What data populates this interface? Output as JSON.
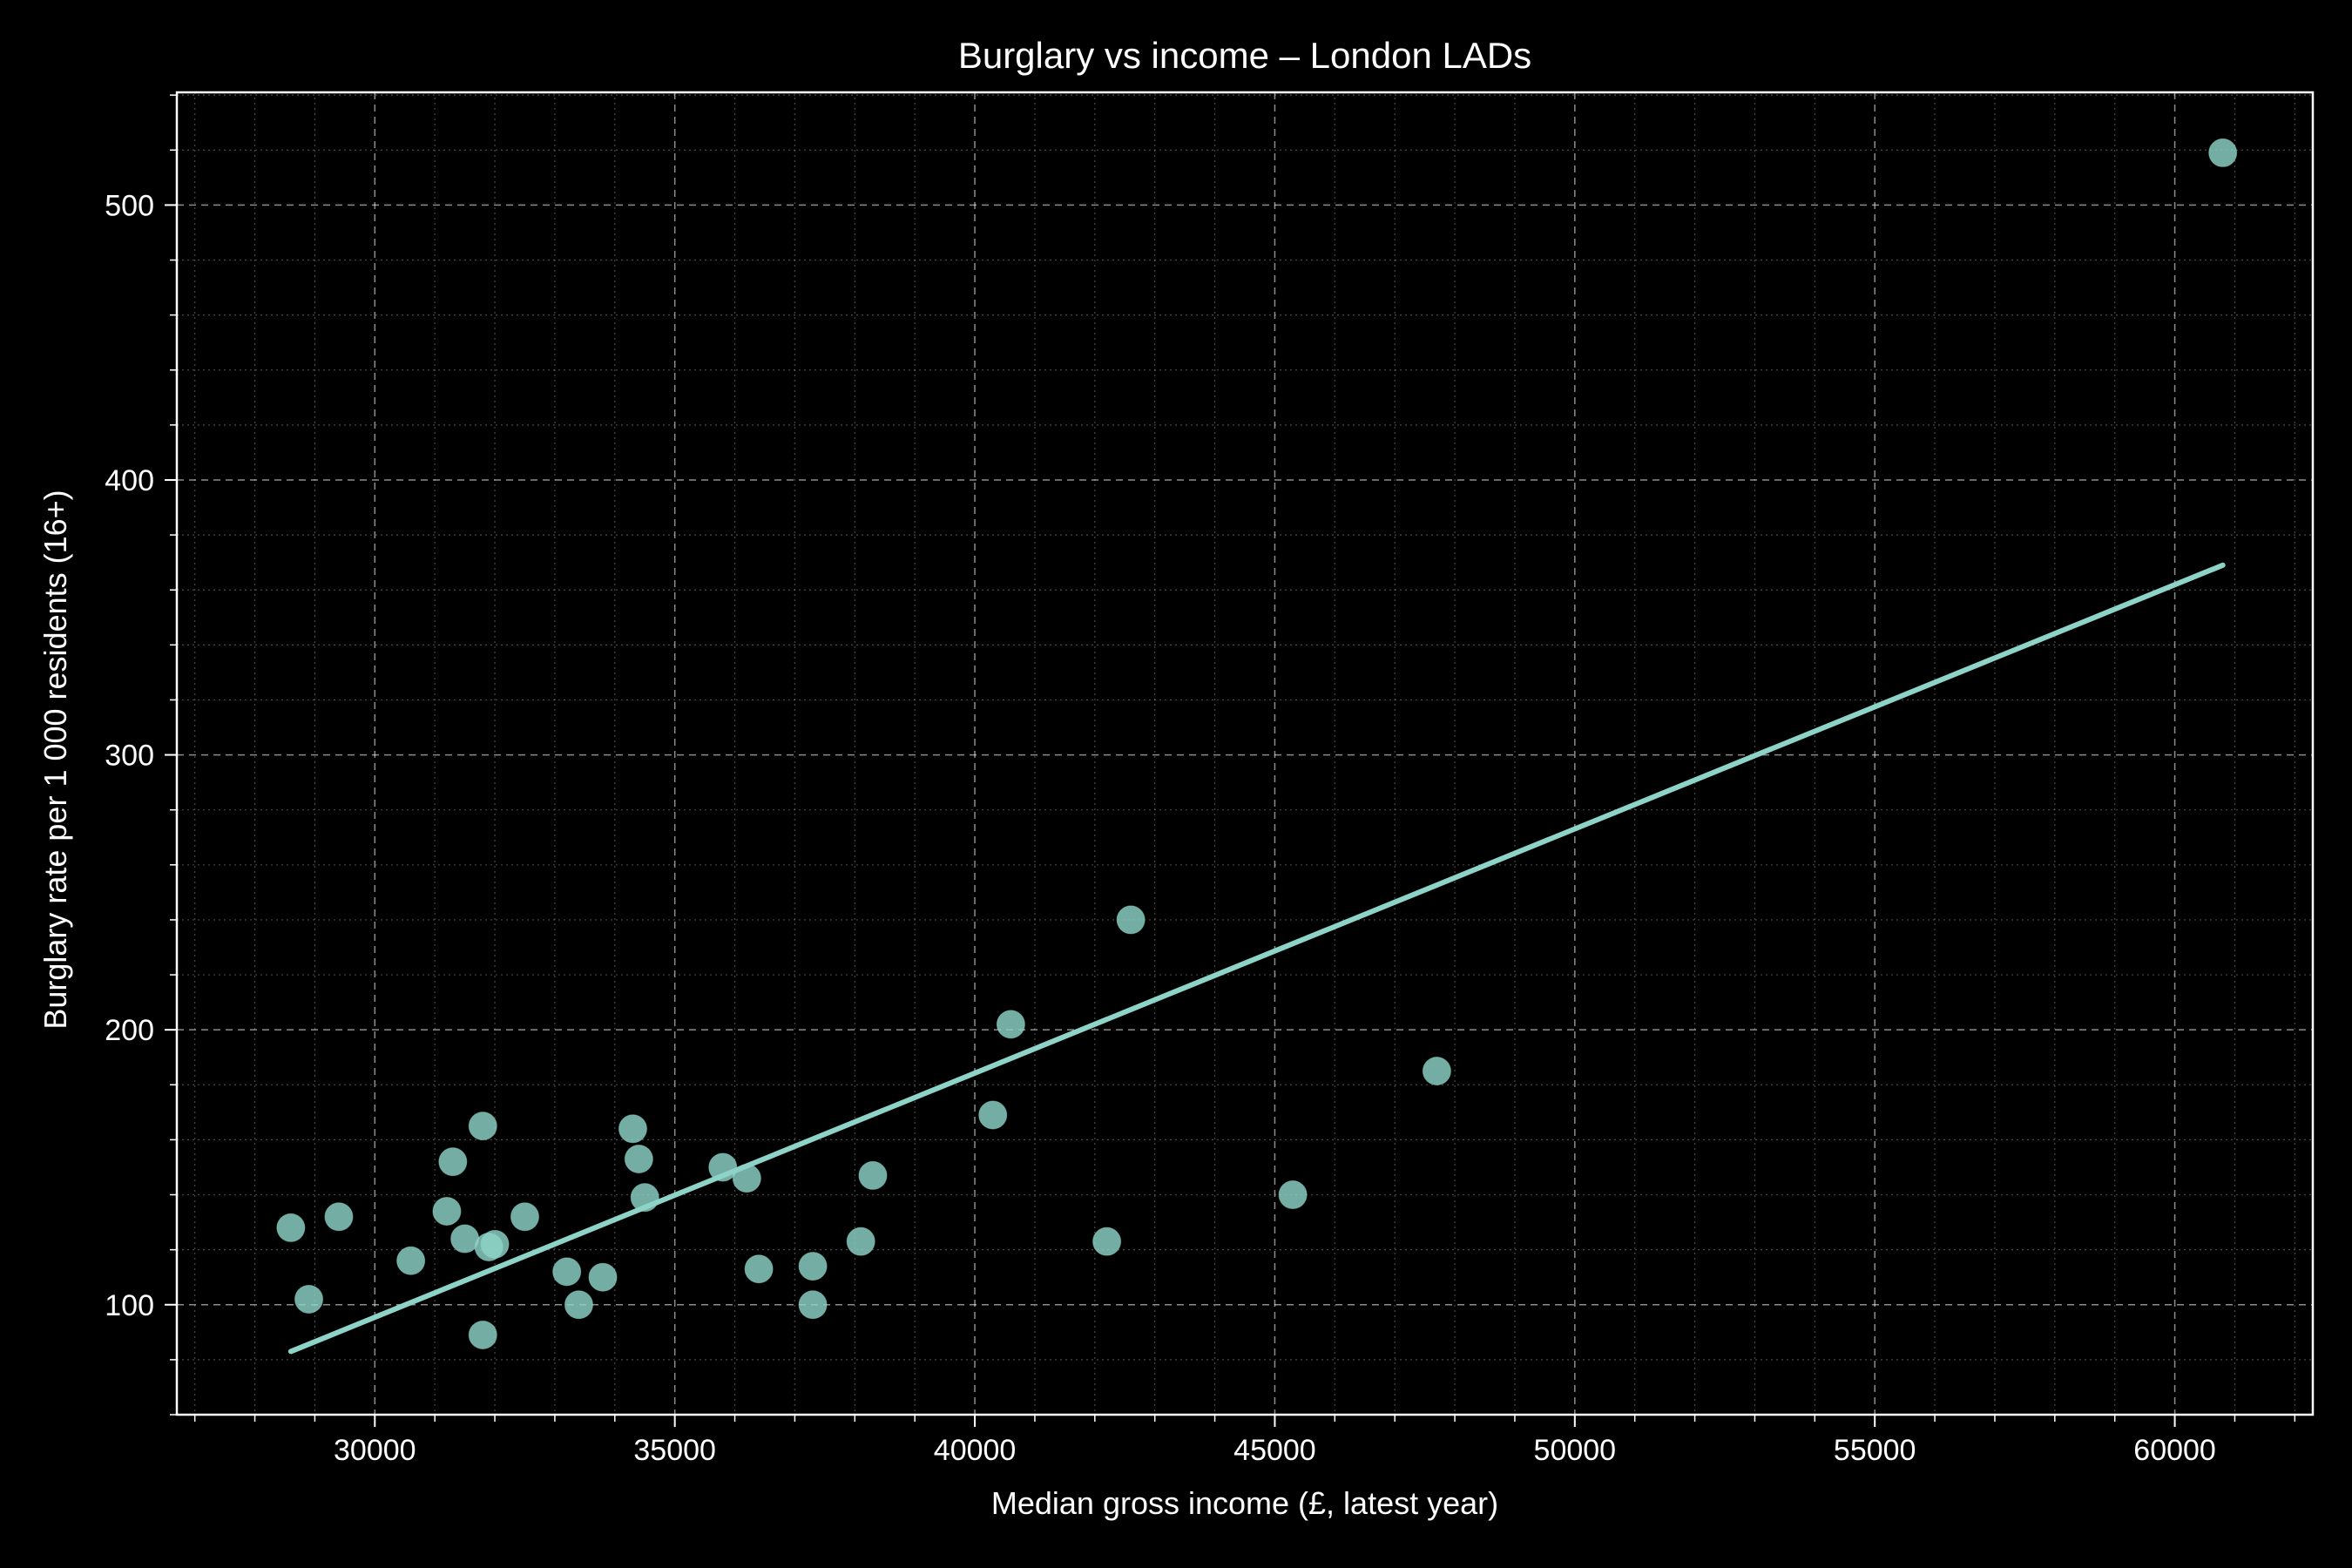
{
  "chart_data": {
    "type": "scatter",
    "title": "Burglary vs income – London LADs",
    "xlabel": "Median gross income (£, latest year)",
    "ylabel": "Burglary rate per 1 000 residents (16+)",
    "xlim": [
      26700,
      62300
    ],
    "ylim": [
      60,
      541
    ],
    "x_ticks": [
      30000,
      35000,
      40000,
      45000,
      50000,
      55000,
      60000
    ],
    "x_tick_labels": [
      "30000",
      "35000",
      "40000",
      "45000",
      "50000",
      "55000",
      "60000"
    ],
    "y_ticks": [
      100,
      200,
      300,
      400,
      500
    ],
    "y_tick_labels": [
      "100",
      "200",
      "300",
      "400",
      "500"
    ],
    "grid": true,
    "legend": "none",
    "point_color": "#8dd3c7",
    "points": [
      {
        "x": 28600,
        "y": 128
      },
      {
        "x": 28900,
        "y": 102
      },
      {
        "x": 29400,
        "y": 132
      },
      {
        "x": 30600,
        "y": 116
      },
      {
        "x": 31200,
        "y": 134
      },
      {
        "x": 31300,
        "y": 152
      },
      {
        "x": 31500,
        "y": 124
      },
      {
        "x": 31800,
        "y": 89
      },
      {
        "x": 31800,
        "y": 165
      },
      {
        "x": 31900,
        "y": 121
      },
      {
        "x": 32000,
        "y": 122
      },
      {
        "x": 32500,
        "y": 132
      },
      {
        "x": 33200,
        "y": 112
      },
      {
        "x": 33400,
        "y": 100
      },
      {
        "x": 33800,
        "y": 110
      },
      {
        "x": 34300,
        "y": 164
      },
      {
        "x": 34400,
        "y": 153
      },
      {
        "x": 34500,
        "y": 139
      },
      {
        "x": 35800,
        "y": 150
      },
      {
        "x": 36200,
        "y": 146
      },
      {
        "x": 36400,
        "y": 113
      },
      {
        "x": 37300,
        "y": 114
      },
      {
        "x": 37300,
        "y": 100
      },
      {
        "x": 38100,
        "y": 123
      },
      {
        "x": 38300,
        "y": 147
      },
      {
        "x": 40300,
        "y": 169
      },
      {
        "x": 40600,
        "y": 202
      },
      {
        "x": 42200,
        "y": 123
      },
      {
        "x": 42600,
        "y": 240
      },
      {
        "x": 45300,
        "y": 140
      },
      {
        "x": 47700,
        "y": 185
      },
      {
        "x": 60800,
        "y": 519
      }
    ],
    "trend_line": {
      "x": [
        28600,
        60800
      ],
      "y": [
        83,
        369
      ],
      "color": "#8dd3c7"
    }
  }
}
